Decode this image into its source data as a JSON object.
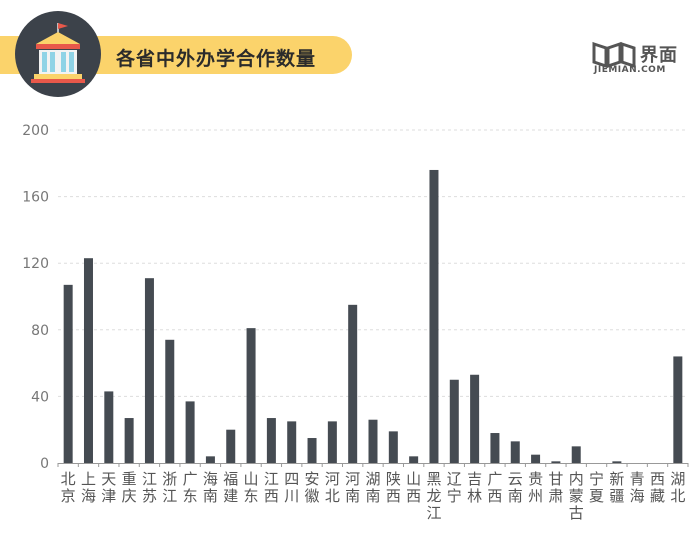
{
  "header": {
    "title": "各省中外办学合作数量"
  },
  "logo": {
    "cn": "界面",
    "en": "JIEMIAN.COM"
  },
  "colors": {
    "bar": "#454b52",
    "accent": "#fbd36b",
    "badge_bg": "#3c424a",
    "grid": "#dddddd",
    "axis_text": "#777777"
  },
  "chart_data": {
    "type": "bar",
    "title": "各省中外办学合作数量",
    "xlabel": "",
    "ylabel": "",
    "ylim": [
      0,
      200
    ],
    "yticks": [
      "0",
      "40",
      "80",
      "120",
      "160",
      "200"
    ],
    "grid": true,
    "categories": [
      "北京",
      "上海",
      "天津",
      "重庆",
      "江苏",
      "浙江",
      "广东",
      "海南",
      "福建",
      "山东",
      "江西",
      "四川",
      "安徽",
      "河北",
      "河南",
      "湖南",
      "陕西",
      "山西",
      "黑龙江",
      "辽宁",
      "吉林",
      "广西",
      "云南",
      "贵州",
      "甘肃",
      "内蒙古",
      "宁夏",
      "新疆",
      "青海",
      "西藏",
      "湖北"
    ],
    "values": [
      107,
      123,
      43,
      27,
      111,
      74,
      37,
      4,
      20,
      81,
      27,
      25,
      15,
      25,
      95,
      26,
      19,
      4,
      176,
      50,
      53,
      18,
      13,
      5,
      1,
      10,
      0,
      1,
      0,
      0,
      64
    ]
  }
}
